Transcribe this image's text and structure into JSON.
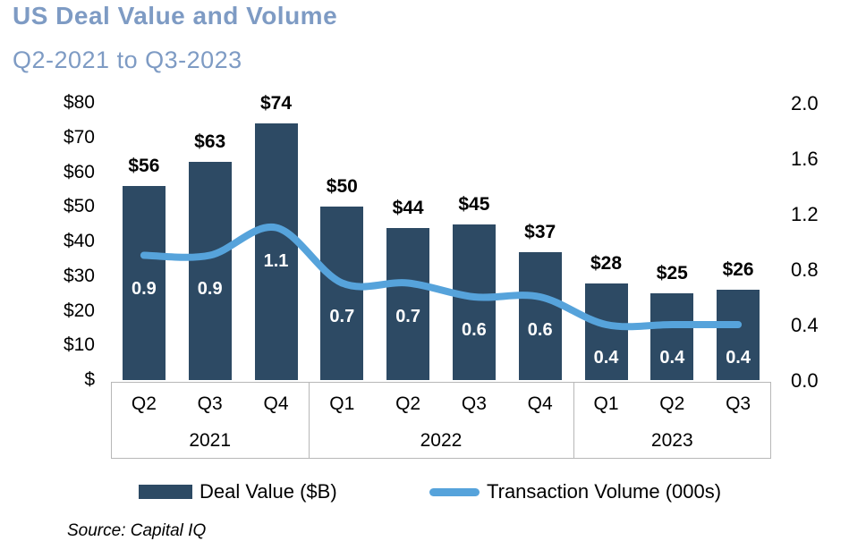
{
  "header": {
    "title": "US Deal Value and Volume",
    "subtitle": "Q2-2021 to Q3-2023"
  },
  "source_note": "Source: Capital IQ",
  "legend": {
    "items": [
      {
        "label": "Deal Value ($B)",
        "type": "bar"
      },
      {
        "label": "Transaction Volume (000s)",
        "type": "line"
      }
    ],
    "position": "bottom"
  },
  "colors": {
    "bar": "#2d4a64",
    "line": "#56a3db",
    "title": "#7e9bc4",
    "subtitle": "#7e9bc4",
    "axis_box_border": "#b7b7b7",
    "bar_value_label": "#000000",
    "inbar_label": "#ffffff"
  },
  "chart_data": {
    "type": "combo",
    "categories": [
      "Q2",
      "Q3",
      "Q4",
      "Q1",
      "Q2",
      "Q3",
      "Q4",
      "Q1",
      "Q2",
      "Q3"
    ],
    "category_groups": [
      {
        "label": "2021",
        "quarters": [
          "Q2",
          "Q3",
          "Q4"
        ]
      },
      {
        "label": "2022",
        "quarters": [
          "Q1",
          "Q2",
          "Q3",
          "Q4"
        ]
      },
      {
        "label": "2023",
        "quarters": [
          "Q1",
          "Q2",
          "Q3"
        ]
      }
    ],
    "title": "US Deal Value and Volume",
    "subtitle": "Q2-2021 to Q3-2023",
    "grid": false,
    "legend_position": "bottom",
    "series": [
      {
        "name": "Deal Value ($B)",
        "type": "bar",
        "axis": "left",
        "values": [
          56,
          63,
          74,
          50,
          44,
          45,
          37,
          28,
          25,
          26
        ],
        "value_labels": [
          "$56",
          "$63",
          "$74",
          "$50",
          "$44",
          "$45",
          "$37",
          "$28",
          "$25",
          "$26"
        ]
      },
      {
        "name": "Transaction Volume (000s)",
        "type": "line",
        "axis": "right",
        "values": [
          0.9,
          0.9,
          1.1,
          0.7,
          0.7,
          0.6,
          0.6,
          0.4,
          0.4,
          0.4
        ],
        "value_labels": [
          "0.9",
          "0.9",
          "1.1",
          "0.7",
          "0.7",
          "0.6",
          "0.6",
          "0.4",
          "0.4",
          "0.4"
        ]
      }
    ],
    "left_axis": {
      "range": [
        0,
        80
      ],
      "ticks": [
        {
          "label": "$80",
          "value": 80
        },
        {
          "label": "$70",
          "value": 70
        },
        {
          "label": "$60",
          "value": 60
        },
        {
          "label": "$50",
          "value": 50
        },
        {
          "label": "$40",
          "value": 40
        },
        {
          "label": "$30",
          "value": 30
        },
        {
          "label": "$20",
          "value": 20
        },
        {
          "label": "$10",
          "value": 10
        },
        {
          "label": "$",
          "value": 0
        }
      ]
    },
    "right_axis": {
      "range": [
        0,
        2
      ],
      "ticks": [
        {
          "label": "2.0",
          "value": 2.0
        },
        {
          "label": "1.6",
          "value": 1.6
        },
        {
          "label": "1.2",
          "value": 1.2
        },
        {
          "label": "0.8",
          "value": 0.8
        },
        {
          "label": "0.4",
          "value": 0.4
        },
        {
          "label": "0.0",
          "value": 0.0
        }
      ]
    }
  }
}
